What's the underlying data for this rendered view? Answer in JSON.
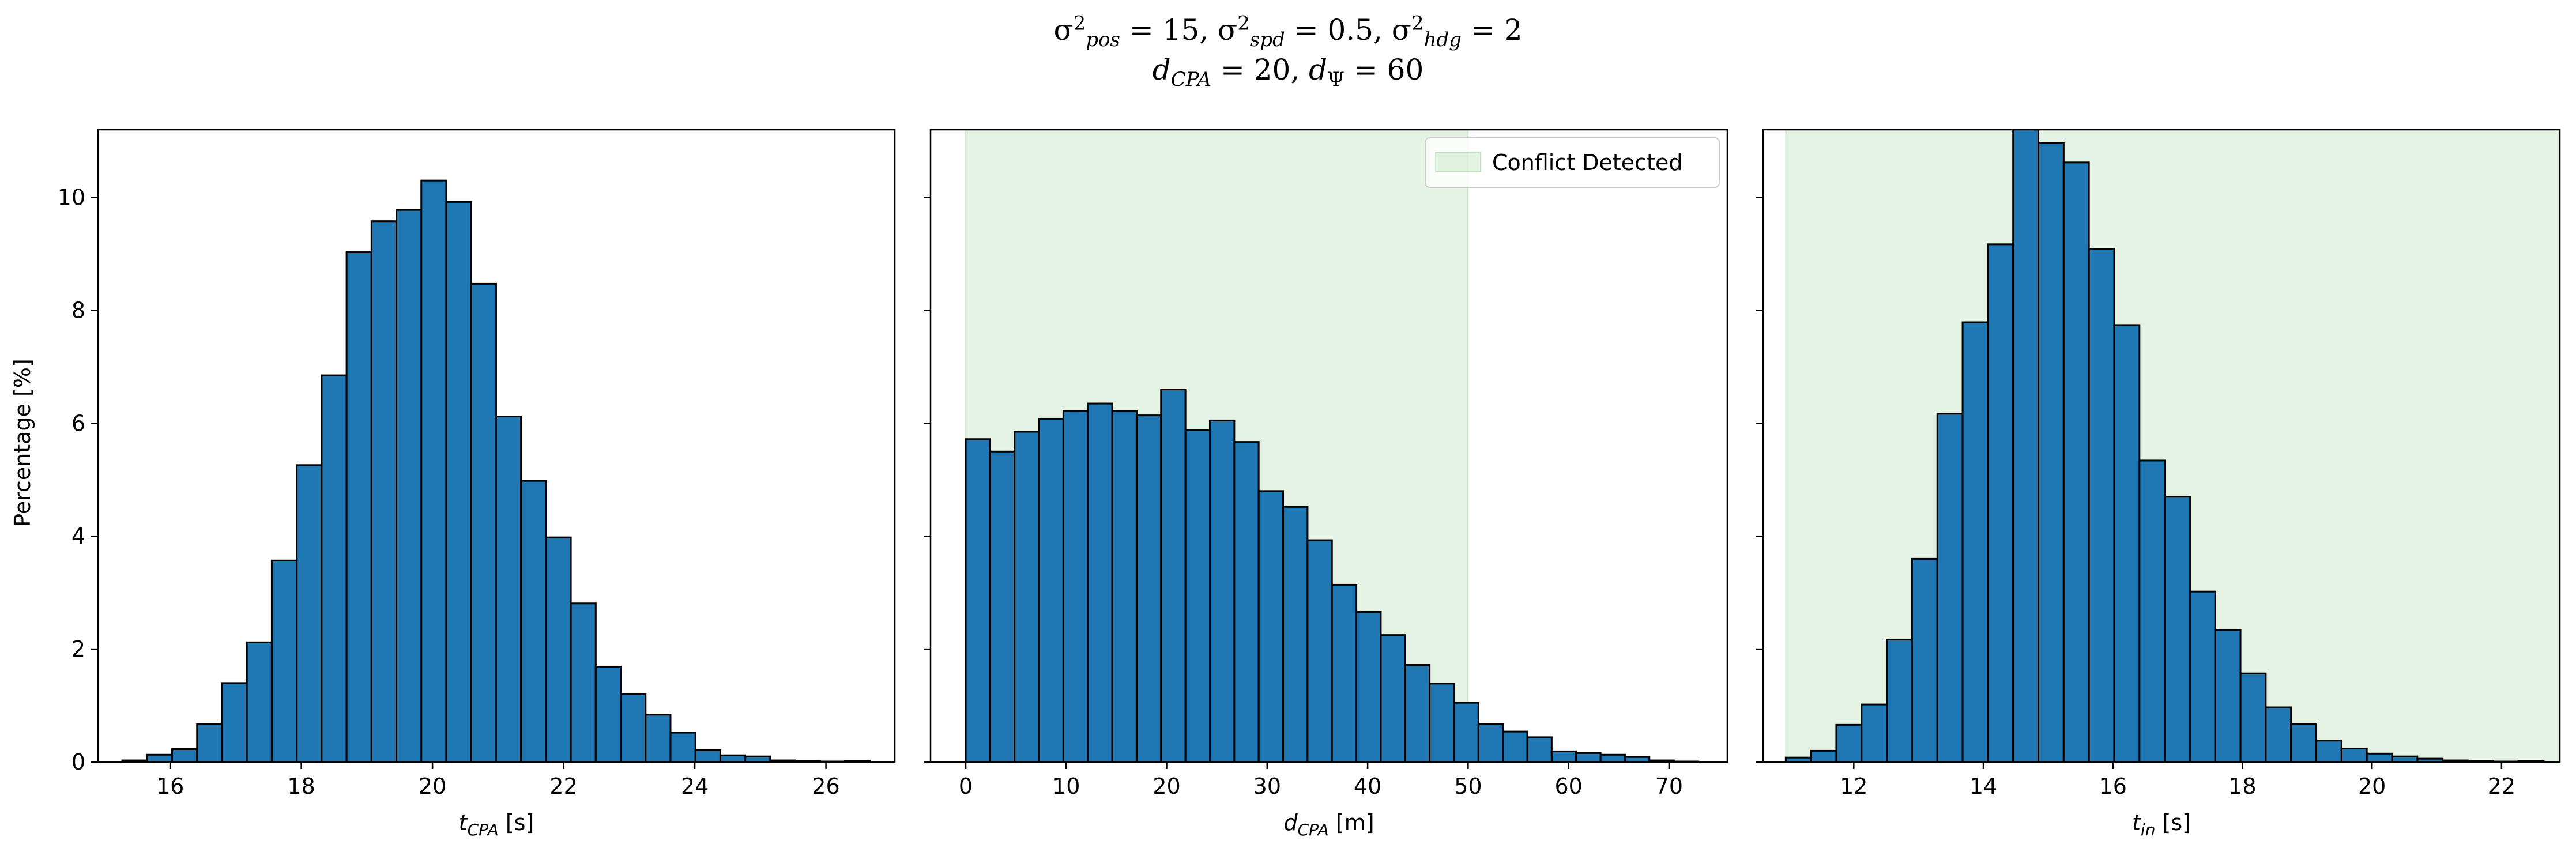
{
  "figure": {
    "suptitle_line1": "σ²pos = 15, σ²spd = 0.5, σ²hdg = 2",
    "suptitle_line2": "dCPA = 20, dΨ = 60",
    "shared_ylabel": "Percentage [%]",
    "bar_color": "#1f77b4",
    "bar_edge": "#000000",
    "shade_color": "#2ca02c"
  },
  "chart_data": [
    {
      "type": "bar",
      "xlabel_main": "t",
      "xlabel_sub": "CPA",
      "xlabel_unit": "[s]",
      "ylabel": "Percentage [%]",
      "xlim": [
        14.9,
        27.05
      ],
      "ylim": [
        0,
        11.2
      ],
      "xticks": [
        16,
        18,
        20,
        22,
        24,
        26
      ],
      "yticks": [
        0,
        2,
        4,
        6,
        8,
        10
      ],
      "bin_start": 15.27,
      "bin_width": 0.38,
      "values": [
        0.03,
        0.13,
        0.23,
        0.67,
        1.4,
        2.12,
        3.57,
        5.26,
        6.85,
        9.03,
        9.58,
        9.78,
        10.3,
        9.92,
        8.47,
        6.12,
        4.98,
        3.98,
        2.81,
        1.69,
        1.21,
        0.84,
        0.52,
        0.21,
        0.12,
        0.1,
        0.03,
        0.02,
        0.01,
        0.02
      ],
      "legend": null
    },
    {
      "type": "bar",
      "xlabel_main": "d",
      "xlabel_sub": "CPA",
      "xlabel_unit": "[m]",
      "xlim": [
        -3.5,
        75.8
      ],
      "ylim": [
        0,
        11.2
      ],
      "xticks": [
        0,
        10,
        20,
        30,
        40,
        50,
        60,
        70
      ],
      "yticks": [
        0,
        2,
        4,
        6,
        8,
        10
      ],
      "bin_start": 0.0,
      "bin_width": 2.43,
      "values": [
        5.72,
        5.5,
        5.85,
        6.08,
        6.22,
        6.35,
        6.22,
        6.14,
        6.6,
        5.88,
        6.05,
        5.67,
        4.8,
        4.52,
        3.93,
        3.14,
        2.66,
        2.25,
        1.72,
        1.39,
        1.05,
        0.67,
        0.54,
        0.44,
        0.19,
        0.16,
        0.13,
        0.09,
        0.03,
        0.01
      ],
      "shade": {
        "from": 0,
        "to": 50
      },
      "legend": {
        "label": "Conflict Detected",
        "position": "upper right"
      }
    },
    {
      "type": "bar",
      "xlabel_main": "t",
      "xlabel_sub": "in",
      "xlabel_unit": "[s]",
      "xlim": [
        10.6,
        22.9
      ],
      "ylim": [
        0,
        11.2
      ],
      "xticks": [
        12,
        14,
        16,
        18,
        20,
        22
      ],
      "yticks": [
        0,
        2,
        4,
        6,
        8,
        10
      ],
      "bin_start": 10.95,
      "bin_width": 0.39,
      "values": [
        0.08,
        0.2,
        0.66,
        1.02,
        2.17,
        3.6,
        6.17,
        7.79,
        9.17,
        11.3,
        10.97,
        10.62,
        9.09,
        7.74,
        5.34,
        4.7,
        3.02,
        2.34,
        1.57,
        0.97,
        0.67,
        0.38,
        0.24,
        0.15,
        0.1,
        0.06,
        0.03,
        0.02,
        0.01,
        0.02
      ],
      "shade": {
        "from": 10.95,
        "to": 30
      },
      "legend": null
    }
  ]
}
